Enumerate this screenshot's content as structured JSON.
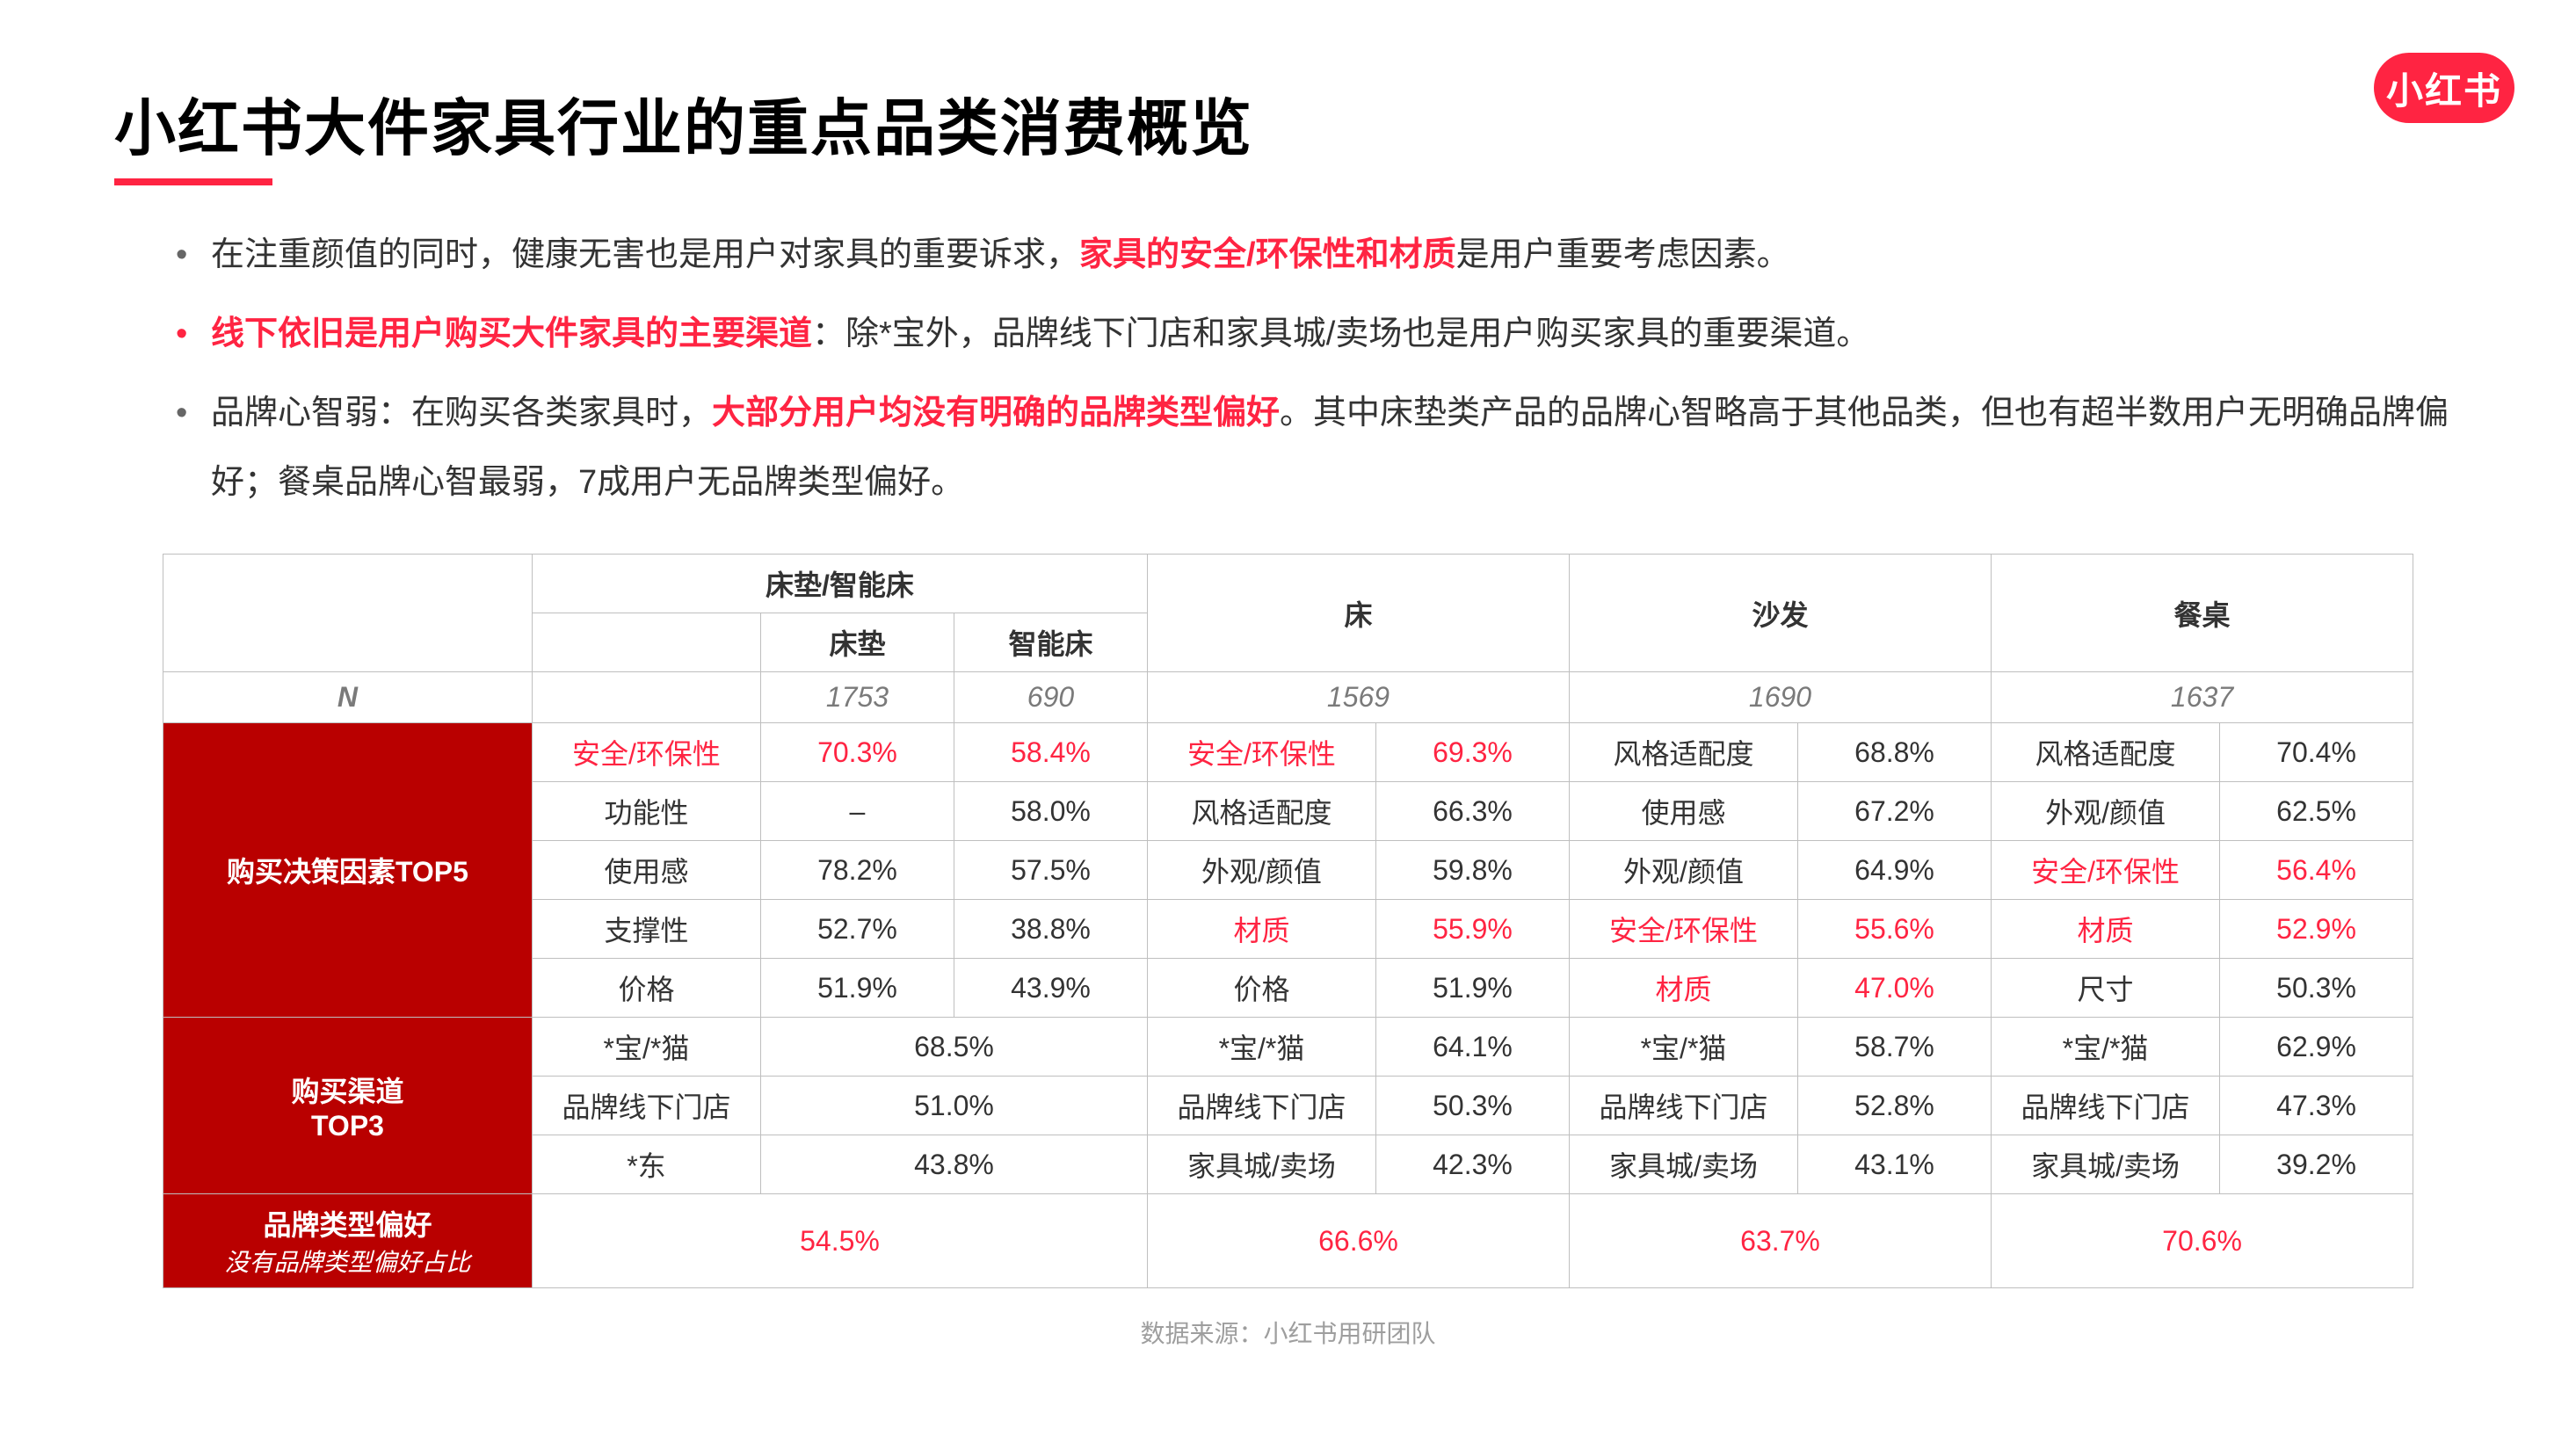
{
  "brand": {
    "logo_text": "小红书",
    "logo_bg": "#ff2442",
    "accent": "#ff2442"
  },
  "title": "小红书大件家具行业的重点品类消费概览",
  "bullets": [
    {
      "pre": "在注重颜值的同时，健康无害也是用户对家具的重要诉求，",
      "hl": "家具的安全/环保性和材质",
      "post": "是用户重要考虑因素。",
      "lead_red": false
    },
    {
      "pre": "",
      "hl": "线下依旧是用户购买大件家具的主要渠道",
      "post": "：除*宝外，品牌线下门店和家具城/卖场也是用户购买家具的重要渠道。",
      "lead_red": true
    },
    {
      "pre": "品牌心智弱：在购买各类家具时，",
      "hl": "大部分用户均没有明确的品牌类型偏好",
      "post": "。其中床垫类产品的品牌心智略高于其他品类，但也有超半数用户无明确品牌偏好；餐桌品牌心智最弱，7成用户无品牌类型偏好。",
      "lead_red": false
    }
  ],
  "table": {
    "columns": {
      "group1": {
        "label": "床垫/智能床",
        "sub": [
          "床垫",
          "智能床"
        ]
      },
      "group2": {
        "label": "床"
      },
      "group3": {
        "label": "沙发"
      },
      "group4": {
        "label": "餐桌"
      }
    },
    "n_row_label": "N",
    "n": {
      "mattress": "1753",
      "smartbed": "690",
      "bed": "1569",
      "sofa": "1690",
      "table": "1637"
    },
    "sections": {
      "top5": {
        "label": "购买决策因素TOP5",
        "rows": [
          {
            "g1_label": "安全/环保性",
            "g1_red": true,
            "mattress": "70.3%",
            "mattress_red": true,
            "smartbed": "58.4%",
            "smartbed_red": true,
            "bed_label": "安全/环保性",
            "bed_label_red": true,
            "bed_val": "69.3%",
            "bed_val_red": true,
            "sofa_label": "风格适配度",
            "sofa_label_red": false,
            "sofa_val": "68.8%",
            "sofa_val_red": false,
            "tbl_label": "风格适配度",
            "tbl_label_red": false,
            "tbl_val": "70.4%",
            "tbl_val_red": false
          },
          {
            "g1_label": "功能性",
            "g1_red": false,
            "mattress": "–",
            "mattress_red": false,
            "smartbed": "58.0%",
            "smartbed_red": false,
            "bed_label": "风格适配度",
            "bed_label_red": false,
            "bed_val": "66.3%",
            "bed_val_red": false,
            "sofa_label": "使用感",
            "sofa_label_red": false,
            "sofa_val": "67.2%",
            "sofa_val_red": false,
            "tbl_label": "外观/颜值",
            "tbl_label_red": false,
            "tbl_val": "62.5%",
            "tbl_val_red": false
          },
          {
            "g1_label": "使用感",
            "g1_red": false,
            "mattress": "78.2%",
            "mattress_red": false,
            "smartbed": "57.5%",
            "smartbed_red": false,
            "bed_label": "外观/颜值",
            "bed_label_red": false,
            "bed_val": "59.8%",
            "bed_val_red": false,
            "sofa_label": "外观/颜值",
            "sofa_label_red": false,
            "sofa_val": "64.9%",
            "sofa_val_red": false,
            "tbl_label": "安全/环保性",
            "tbl_label_red": true,
            "tbl_val": "56.4%",
            "tbl_val_red": true
          },
          {
            "g1_label": "支撑性",
            "g1_red": false,
            "mattress": "52.7%",
            "mattress_red": false,
            "smartbed": "38.8%",
            "smartbed_red": false,
            "bed_label": "材质",
            "bed_label_red": true,
            "bed_val": "55.9%",
            "bed_val_red": true,
            "sofa_label": "安全/环保性",
            "sofa_label_red": true,
            "sofa_val": "55.6%",
            "sofa_val_red": true,
            "tbl_label": "材质",
            "tbl_label_red": true,
            "tbl_val": "52.9%",
            "tbl_val_red": true
          },
          {
            "g1_label": "价格",
            "g1_red": false,
            "mattress": "51.9%",
            "mattress_red": false,
            "smartbed": "43.9%",
            "smartbed_red": false,
            "bed_label": "价格",
            "bed_label_red": false,
            "bed_val": "51.9%",
            "bed_val_red": false,
            "sofa_label": "材质",
            "sofa_label_red": true,
            "sofa_val": "47.0%",
            "sofa_val_red": true,
            "tbl_label": "尺寸",
            "tbl_label_red": false,
            "tbl_val": "50.3%",
            "tbl_val_red": false
          }
        ]
      },
      "top3": {
        "label_line1": "购买渠道",
        "label_line2": "TOP3",
        "rows": [
          {
            "g1_label": "*宝/*猫",
            "g1_val": "68.5%",
            "bed_label": "*宝/*猫",
            "bed_val": "64.1%",
            "sofa_label": "*宝/*猫",
            "sofa_val": "58.7%",
            "tbl_label": "*宝/*猫",
            "tbl_val": "62.9%"
          },
          {
            "g1_label": "品牌线下门店",
            "g1_val": "51.0%",
            "bed_label": "品牌线下门店",
            "bed_val": "50.3%",
            "sofa_label": "品牌线下门店",
            "sofa_val": "52.8%",
            "tbl_label": "品牌线下门店",
            "tbl_val": "47.3%"
          },
          {
            "g1_label": "*东",
            "g1_val": "43.8%",
            "bed_label": "家具城/卖场",
            "bed_val": "42.3%",
            "sofa_label": "家具城/卖场",
            "sofa_val": "43.1%",
            "tbl_label": "家具城/卖场",
            "tbl_val": "39.2%"
          }
        ]
      },
      "brandpref": {
        "label_line1": "品牌类型偏好",
        "label_line2": "没有品牌类型偏好占比",
        "g1": "54.5%",
        "bed": "66.6%",
        "sofa": "63.7%",
        "tbl": "70.6%"
      }
    }
  },
  "footer": "数据来源：小红书用研团队"
}
